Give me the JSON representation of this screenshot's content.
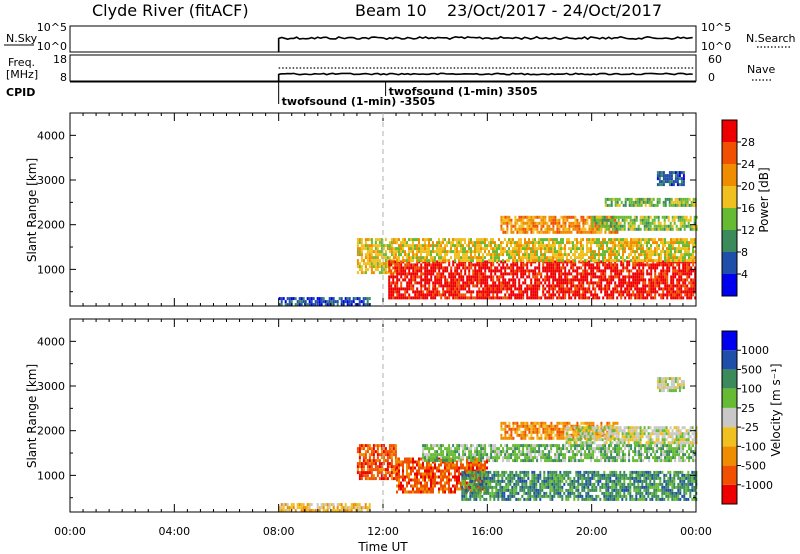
{
  "header": {
    "station": "Clyde River (fitACF)",
    "beam": "Beam 10",
    "date_range": "23/Oct/2017 - 24/Oct/2017"
  },
  "panels": {
    "nsky": {
      "label": "N.Sky",
      "left_ticks": [
        "10^5",
        "10^0"
      ],
      "right_ticks": [
        "10^5",
        "10^0"
      ],
      "right_label": "N.Search",
      "data_start_hour": 8.0
    },
    "freq": {
      "label_line1": "Freq.",
      "label_line2": "[MHz]",
      "left_ticks": [
        "18",
        "8"
      ],
      "right_ticks": [
        "60",
        "0"
      ],
      "right_label": "Nave",
      "data_start_hour": 8.0
    },
    "cpid": {
      "label": "CPID",
      "entries": [
        {
          "hour": 8.0,
          "text": "twofsound (1-min) -3505"
        },
        {
          "hour": 12.1,
          "text": "twofsound (1-min) 3505"
        }
      ]
    }
  },
  "chart_data": [
    {
      "type": "heatmap",
      "quantity": "Power",
      "ylabel": "Slant Range [km]",
      "ylim": [
        180,
        4500
      ],
      "yticks": [
        1000,
        2000,
        3000,
        4000
      ],
      "xlim_hours": [
        0,
        24
      ],
      "marker_hour": 12,
      "colorbar": {
        "label": "Power [dB]",
        "ticks": [
          "4",
          "8",
          "12",
          "16",
          "20",
          "24",
          "28"
        ],
        "colors": [
          "#0000ee",
          "#1f4fa8",
          "#3a8a5c",
          "#66bb33",
          "#f0c020",
          "#f08c00",
          "#f05000",
          "#ee0000"
        ]
      },
      "echo_regions": [
        {
          "hours": [
            8.0,
            11.5
          ],
          "range_km": [
            200,
            380
          ],
          "level": 1
        },
        {
          "hours": [
            11.0,
            12.5
          ],
          "range_km": [
            950,
            1700
          ],
          "level": 4
        },
        {
          "hours": [
            12.2,
            24.0
          ],
          "range_km": [
            350,
            1200
          ],
          "level": 7
        },
        {
          "hours": [
            12.5,
            24.0
          ],
          "range_km": [
            1200,
            1700
          ],
          "level": 4
        },
        {
          "hours": [
            16.5,
            21.0
          ],
          "range_km": [
            1800,
            2200
          ],
          "level": 5
        },
        {
          "hours": [
            20.0,
            24.0
          ],
          "range_km": [
            1900,
            2200
          ],
          "level": 3
        },
        {
          "hours": [
            20.5,
            24.0
          ],
          "range_km": [
            2400,
            2600
          ],
          "level": 3
        },
        {
          "hours": [
            22.5,
            23.5
          ],
          "range_km": [
            2900,
            3200
          ],
          "level": 1
        }
      ]
    },
    {
      "type": "heatmap",
      "quantity": "Velocity",
      "ylabel": "Slant Range [km]",
      "ylim": [
        180,
        4500
      ],
      "yticks": [
        1000,
        2000,
        3000,
        4000
      ],
      "xlim_hours": [
        0,
        24
      ],
      "xticks": [
        "00:00",
        "04:00",
        "08:00",
        "12:00",
        "16:00",
        "20:00",
        "00:00"
      ],
      "xlabel": "Time UT",
      "marker_hour": 12,
      "colorbar": {
        "label": "Velocity [m s⁻¹]",
        "ticks": [
          "-1000",
          "-500",
          "-100",
          "-25",
          "25",
          "100",
          "500",
          "1000"
        ],
        "colors": [
          "#ee0000",
          "#f05000",
          "#f08c00",
          "#f0c020",
          "#c8c8c8",
          "#66bb33",
          "#3a8a5c",
          "#1f4fa8",
          "#0000ee"
        ]
      },
      "echo_regions": [
        {
          "hours": [
            8.0,
            11.5
          ],
          "range_km": [
            200,
            380
          ],
          "level": 3
        },
        {
          "hours": [
            11.0,
            12.5
          ],
          "range_km": [
            950,
            1700
          ],
          "level": 1
        },
        {
          "hours": [
            12.5,
            16.0
          ],
          "range_km": [
            600,
            1400
          ],
          "level": 1
        },
        {
          "hours": [
            15.0,
            24.0
          ],
          "range_km": [
            450,
            1100
          ],
          "level": 6
        },
        {
          "hours": [
            13.5,
            24.0
          ],
          "range_km": [
            1300,
            1700
          ],
          "level": 5
        },
        {
          "hours": [
            16.5,
            21.0
          ],
          "range_km": [
            1800,
            2200
          ],
          "level": 2
        },
        {
          "hours": [
            19.0,
            24.0
          ],
          "range_km": [
            1700,
            2100
          ],
          "level": 4
        },
        {
          "hours": [
            22.5,
            23.5
          ],
          "range_km": [
            2900,
            3200
          ],
          "level": 4
        }
      ]
    }
  ]
}
